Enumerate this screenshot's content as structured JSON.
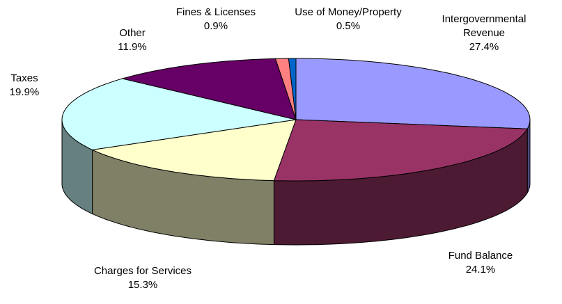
{
  "chart_data": {
    "type": "pie",
    "categories": [
      "Intergovernmental Revenue",
      "Fund Balance",
      "Charges for Services",
      "Taxes",
      "Other",
      "Fines & Licenses",
      "Use of Money/Property"
    ],
    "values": [
      27.4,
      24.1,
      15.3,
      19.9,
      11.9,
      0.9,
      0.5
    ],
    "value_labels": [
      "27.4%",
      "24.1%",
      "15.3%",
      "19.9%",
      "11.9%",
      "0.9%",
      "0.5%"
    ],
    "colors": [
      "#9999ff",
      "#993366",
      "#ffffcc",
      "#ccffff",
      "#660066",
      "#ff8080",
      "#0066cc"
    ]
  }
}
